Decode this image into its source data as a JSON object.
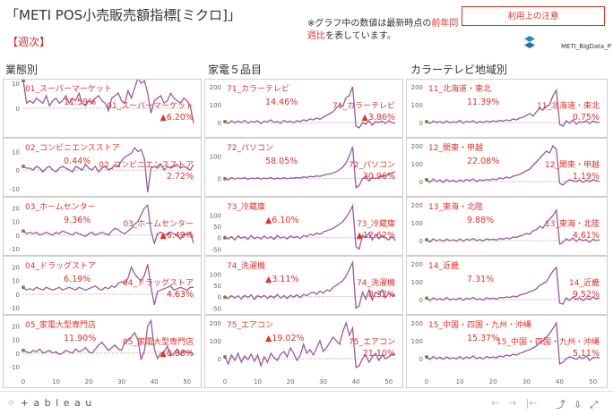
{
  "header": {
    "title": "「METI POS小売販売額指標[ミクロ]」",
    "weekly_label": "【週次】",
    "note_part1": "※グラフ中の数値は最新時点の",
    "note_red1": "前年同",
    "note_red2": "週比",
    "note_part2": "を表しています。",
    "usage_button": "利用上の注意",
    "brand": "METI_BigData_P"
  },
  "columns": [
    {
      "title": "業態別",
      "panels": [
        {
          "name": "01_スーパーマーケット",
          "avg": "11.59%",
          "latest": "▲6.20%",
          "ylim": [
            -10,
            10
          ],
          "ticks": [
            0,
            10
          ]
        },
        {
          "name": "02_コンビニエンスストア",
          "avg": "0.44%",
          "latest": "2.72%",
          "ylim": [
            -12,
            15
          ],
          "ticks": [
            -10,
            0,
            10
          ]
        },
        {
          "name": "03_ホームセンター",
          "avg": "9.36%",
          "latest": "▲6.49%",
          "ylim": [
            -12,
            25
          ],
          "ticks": [
            -10,
            0,
            10,
            20
          ]
        },
        {
          "name": "04_ドラッグストア",
          "avg": "6.19%",
          "latest": "4.63%",
          "ylim": [
            -12,
            25
          ],
          "ticks": [
            -10,
            0,
            10,
            20
          ]
        },
        {
          "name": "05_家電大型専門店",
          "avg": "11.90%",
          "latest": "▲0.88%",
          "ylim": [
            -12,
            25
          ],
          "ticks": [
            -10,
            0,
            10,
            20
          ]
        }
      ]
    },
    {
      "title": "家電５品目",
      "panels": [
        {
          "name": "71_カラーテレビ",
          "avg": "14.46%",
          "latest": "▲3.86%",
          "ylim": [
            -60,
            220
          ],
          "ticks": [
            0,
            100,
            200
          ]
        },
        {
          "name": "72_パソコン",
          "avg": "58.05%",
          "latest": "30.96%",
          "ylim": [
            -60,
            160
          ],
          "ticks": [
            0,
            100
          ]
        },
        {
          "name": "73_冷蔵庫",
          "avg": "▲6.10%",
          "latest": "▲12.62%",
          "ylim": [
            -60,
            160
          ],
          "ticks": [
            -50,
            0,
            50,
            100
          ]
        },
        {
          "name": "74_洗濯機",
          "avg": "▲3.11%",
          "latest": "8.32%",
          "ylim": [
            -60,
            160
          ],
          "ticks": [
            -50,
            0,
            50,
            100
          ]
        },
        {
          "name": "75_エアコン",
          "avg": "▲19.02%",
          "latest": "21.10%",
          "ylim": [
            -60,
            220
          ],
          "ticks": [
            0,
            100,
            200
          ]
        }
      ]
    },
    {
      "title": "カラーテレビ地域別",
      "panels": [
        {
          "name": "11_北海道・東北",
          "avg": "11.39%",
          "latest": "0.75%",
          "ylim": [
            -60,
            220
          ],
          "ticks": [
            0,
            100,
            200
          ]
        },
        {
          "name": "12_関東・甲越",
          "avg": "22.08%",
          "latest": "1.19%",
          "ylim": [
            -60,
            220
          ],
          "ticks": [
            0,
            100,
            200
          ]
        },
        {
          "name": "13_東海・北陸",
          "avg": "9.88%",
          "latest": "4.61%",
          "ylim": [
            -60,
            220
          ],
          "ticks": [
            0,
            100,
            200
          ]
        },
        {
          "name": "14_近畿",
          "avg": "7.31%",
          "latest": "9.52%",
          "ylim": [
            -60,
            220
          ],
          "ticks": [
            0,
            100,
            200
          ]
        },
        {
          "name": "15_中国・四国・九州・沖縄",
          "avg": "15.37%",
          "latest": "5.11%",
          "ylim": [
            -60,
            220
          ],
          "ticks": [
            0,
            100,
            200
          ]
        }
      ]
    }
  ],
  "x_ticks": [
    0,
    10,
    20,
    30,
    40,
    50
  ],
  "footer": {
    "tableau": "⁘ + a b l e a u"
  },
  "colors": {
    "line": "#9b5a9e",
    "label": "#e0322a",
    "grid": "#999999",
    "marker": "#8a7a4a"
  },
  "chart_data": {
    "type": "line",
    "x": "weeks 0-52",
    "series": [
      {
        "name": "01_スーパーマーケット",
        "values": [
          11,
          2,
          3,
          2,
          4,
          3,
          2,
          5,
          1,
          3,
          4,
          2,
          3,
          5,
          2,
          4,
          3,
          6,
          2,
          1,
          3,
          2,
          4,
          5,
          3,
          2,
          -1,
          4,
          5,
          6,
          3,
          2,
          7,
          4,
          8,
          12,
          10,
          11,
          6,
          -2,
          3,
          4,
          5,
          2,
          3,
          6,
          4,
          3,
          2,
          4,
          3,
          1,
          -6
        ]
      },
      {
        "name": "02_コンビニエンスストア",
        "values": [
          2,
          1,
          1,
          0,
          2,
          1,
          -1,
          1,
          2,
          0,
          -1,
          1,
          2,
          1,
          0,
          -1,
          2,
          1,
          0,
          3,
          1,
          0,
          2,
          -1,
          1,
          2,
          0,
          1,
          3,
          2,
          5,
          7,
          8,
          9,
          12,
          10,
          11,
          6,
          -12,
          1,
          2,
          1,
          3,
          0,
          2,
          1,
          2,
          3,
          1,
          2,
          1,
          0,
          3
        ]
      },
      {
        "name": "03_ホームセンター",
        "values": [
          3,
          1,
          2,
          1,
          2,
          0,
          1,
          2,
          1,
          0,
          2,
          1,
          3,
          2,
          1,
          0,
          2,
          1,
          0,
          -1,
          1,
          2,
          0,
          1,
          2,
          1,
          0,
          3,
          5,
          4,
          2,
          1,
          3,
          5,
          8,
          10,
          15,
          20,
          22,
          3,
          -6,
          1,
          2,
          0,
          1,
          2,
          1,
          0,
          -3,
          1,
          0,
          2,
          -6
        ]
      },
      {
        "name": "04_ドラッグストア",
        "values": [
          5,
          3,
          4,
          3,
          5,
          4,
          3,
          5,
          4,
          3,
          4,
          5,
          3,
          4,
          5,
          4,
          3,
          5,
          4,
          3,
          4,
          5,
          6,
          4,
          3,
          5,
          4,
          6,
          5,
          8,
          9,
          8,
          12,
          20,
          15,
          12,
          10,
          14,
          22,
          5,
          -8,
          2,
          3,
          4,
          5,
          6,
          3,
          4,
          5,
          4,
          3,
          5,
          5
        ]
      },
      {
        "name": "05_家電大型専門店",
        "values": [
          2,
          1,
          0,
          2,
          1,
          3,
          0,
          1,
          2,
          0,
          1,
          -1,
          0,
          2,
          1,
          0,
          3,
          1,
          2,
          4,
          1,
          0,
          3,
          6,
          8,
          5,
          2,
          4,
          6,
          3,
          2,
          8,
          10,
          12,
          15,
          10,
          -5,
          2,
          20,
          24,
          3,
          -4,
          0,
          1,
          5,
          -2,
          0,
          3,
          -1,
          2,
          0,
          1,
          -1
        ]
      },
      {
        "name": "71_カラーテレビ",
        "values": [
          5,
          -5,
          10,
          -2,
          8,
          0,
          12,
          -3,
          6,
          2,
          10,
          -5,
          8,
          4,
          15,
          0,
          6,
          -4,
          12,
          3,
          8,
          -2,
          10,
          5,
          15,
          10,
          20,
          15,
          25,
          18,
          30,
          40,
          50,
          60,
          80,
          100,
          90,
          140,
          150,
          200,
          -20,
          -30,
          0,
          -10,
          10,
          -15,
          5,
          0,
          8,
          -5,
          10,
          0,
          -4
        ]
      },
      {
        "name": "72_パソコン",
        "values": [
          0,
          -5,
          5,
          -2,
          3,
          0,
          5,
          -3,
          2,
          0,
          4,
          -2,
          3,
          0,
          5,
          -2,
          2,
          0,
          4,
          -1,
          3,
          2,
          5,
          3,
          8,
          5,
          10,
          8,
          12,
          10,
          15,
          18,
          20,
          25,
          30,
          40,
          50,
          70,
          100,
          140,
          -40,
          -30,
          0,
          10,
          -10,
          5,
          0,
          8,
          10,
          12,
          20,
          25,
          31
        ]
      },
      {
        "name": "73_冷蔵庫",
        "values": [
          0,
          -5,
          5,
          -10,
          8,
          -3,
          5,
          -8,
          10,
          -5,
          3,
          -6,
          8,
          -4,
          5,
          -8,
          10,
          -2,
          4,
          -6,
          8,
          0,
          5,
          -4,
          10,
          5,
          15,
          10,
          20,
          15,
          25,
          30,
          35,
          40,
          50,
          60,
          70,
          90,
          110,
          140,
          -40,
          -50,
          10,
          0,
          20,
          -10,
          15,
          -5,
          10,
          0,
          -10,
          5,
          -13
        ]
      },
      {
        "name": "74_洗濯機",
        "values": [
          -2,
          -8,
          5,
          -6,
          4,
          -10,
          6,
          -4,
          8,
          -12,
          5,
          -3,
          6,
          -8,
          4,
          -5,
          10,
          -6,
          5,
          -8,
          6,
          -2,
          8,
          -4,
          10,
          5,
          15,
          20,
          10,
          25,
          15,
          30,
          25,
          40,
          50,
          60,
          70,
          90,
          120,
          150,
          -50,
          -40,
          20,
          -10,
          30,
          -15,
          20,
          10,
          30,
          -5,
          15,
          5,
          8
        ]
      },
      {
        "name": "75_エアコン",
        "values": [
          10,
          -30,
          20,
          -10,
          30,
          -20,
          15,
          -5,
          25,
          -15,
          20,
          -40,
          10,
          -20,
          30,
          5,
          -10,
          25,
          40,
          10,
          60,
          30,
          -10,
          20,
          80,
          30,
          50,
          20,
          60,
          100,
          40,
          60,
          90,
          120,
          100,
          80,
          150,
          200,
          130,
          170,
          -50,
          -40,
          0,
          20,
          -20,
          10,
          30,
          -10,
          20,
          0,
          10,
          25,
          21
        ]
      },
      {
        "name": "11_北海道・東北",
        "values": [
          5,
          -5,
          8,
          0,
          6,
          -3,
          10,
          -2,
          5,
          0,
          12,
          -4,
          8,
          2,
          10,
          -3,
          6,
          0,
          8,
          3,
          10,
          5,
          12,
          8,
          15,
          10,
          20,
          15,
          25,
          30,
          40,
          50,
          35,
          60,
          80,
          70,
          90,
          100,
          150,
          180,
          -10,
          -20,
          10,
          -5,
          15,
          -10,
          5,
          0,
          10,
          -5,
          8,
          2,
          1
        ]
      },
      {
        "name": "12_関東・甲越",
        "values": [
          10,
          -5,
          15,
          0,
          10,
          -5,
          12,
          0,
          8,
          -3,
          10,
          0,
          12,
          5,
          15,
          0,
          10,
          5,
          12,
          8,
          15,
          10,
          20,
          15,
          25,
          20,
          30,
          35,
          40,
          50,
          60,
          70,
          90,
          110,
          130,
          150,
          170,
          160,
          200,
          180,
          -10,
          -20,
          0,
          10,
          5,
          0,
          10,
          -5,
          8,
          0,
          10,
          5,
          1
        ]
      },
      {
        "name": "13_東海・北陸",
        "values": [
          5,
          -8,
          10,
          -2,
          6,
          -5,
          8,
          0,
          5,
          -3,
          10,
          -4,
          8,
          2,
          12,
          0,
          6,
          -2,
          10,
          5,
          8,
          3,
          12,
          8,
          15,
          10,
          20,
          18,
          25,
          30,
          40,
          35,
          55,
          60,
          80,
          70,
          100,
          120,
          140,
          170,
          -20,
          -10,
          10,
          0,
          15,
          -5,
          10,
          0,
          5,
          -10,
          8,
          0,
          5
        ]
      },
      {
        "name": "14_近畿",
        "values": [
          8,
          -5,
          10,
          0,
          6,
          -3,
          12,
          -2,
          5,
          0,
          10,
          -4,
          8,
          3,
          12,
          0,
          6,
          -3,
          10,
          5,
          8,
          3,
          12,
          10,
          15,
          12,
          20,
          15,
          25,
          30,
          35,
          45,
          50,
          60,
          80,
          90,
          100,
          130,
          160,
          180,
          -20,
          -25,
          10,
          -5,
          15,
          0,
          10,
          -5,
          8,
          0,
          15,
          5,
          10
        ]
      },
      {
        "name": "15_中国・四国・九州・沖縄",
        "values": [
          10,
          -5,
          12,
          0,
          8,
          -3,
          10,
          0,
          6,
          -2,
          12,
          -3,
          10,
          2,
          15,
          0,
          8,
          -2,
          12,
          5,
          10,
          5,
          15,
          10,
          20,
          15,
          25,
          20,
          30,
          35,
          45,
          50,
          60,
          70,
          90,
          100,
          120,
          140,
          170,
          200,
          -30,
          -20,
          0,
          10,
          5,
          -5,
          10,
          0,
          15,
          -10,
          5,
          8,
          5
        ]
      }
    ]
  }
}
